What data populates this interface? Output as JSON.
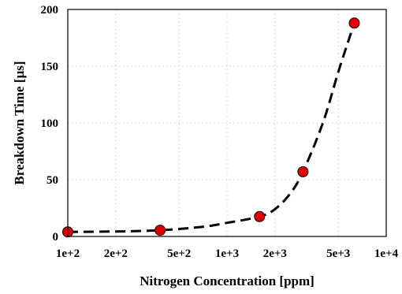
{
  "chart_data": {
    "type": "scatter",
    "title": "",
    "xlabel": "Nitrogen Concentration [ppm]",
    "ylabel": "Breakdown Time [µs]",
    "x_scale": "log",
    "xlim": [
      100,
      10000
    ],
    "ylim": [
      0,
      200
    ],
    "grid": true,
    "x_ticks": [
      {
        "value": 100,
        "label": "1e+2"
      },
      {
        "value": 200,
        "label": "2e+2"
      },
      {
        "value": 500,
        "label": "5e+2"
      },
      {
        "value": 1000,
        "label": "1e+3"
      },
      {
        "value": 2000,
        "label": "2e+3"
      },
      {
        "value": 5000,
        "label": "5e+3"
      },
      {
        "value": 10000,
        "label": "1e+4"
      }
    ],
    "y_ticks": [
      {
        "value": 0,
        "label": "0"
      },
      {
        "value": 50,
        "label": "50"
      },
      {
        "value": 100,
        "label": "100"
      },
      {
        "value": 150,
        "label": "150"
      },
      {
        "value": 200,
        "label": "200"
      }
    ],
    "series": [
      {
        "kind": "points",
        "marker": "circle",
        "color": "#e00000",
        "x": [
          100,
          380,
          1600,
          3000,
          6300
        ],
        "y": [
          4,
          5.5,
          17.5,
          57,
          188
        ]
      },
      {
        "kind": "fit-line",
        "style": "dashed",
        "color": "#000000",
        "x": [
          100,
          200,
          380,
          700,
          1000,
          1600,
          2000,
          2500,
          3000,
          4000,
          5000,
          6300
        ],
        "y": [
          4,
          4.4,
          5.5,
          8.5,
          12,
          17.5,
          24,
          38,
          57,
          100,
          145,
          188
        ]
      }
    ]
  }
}
